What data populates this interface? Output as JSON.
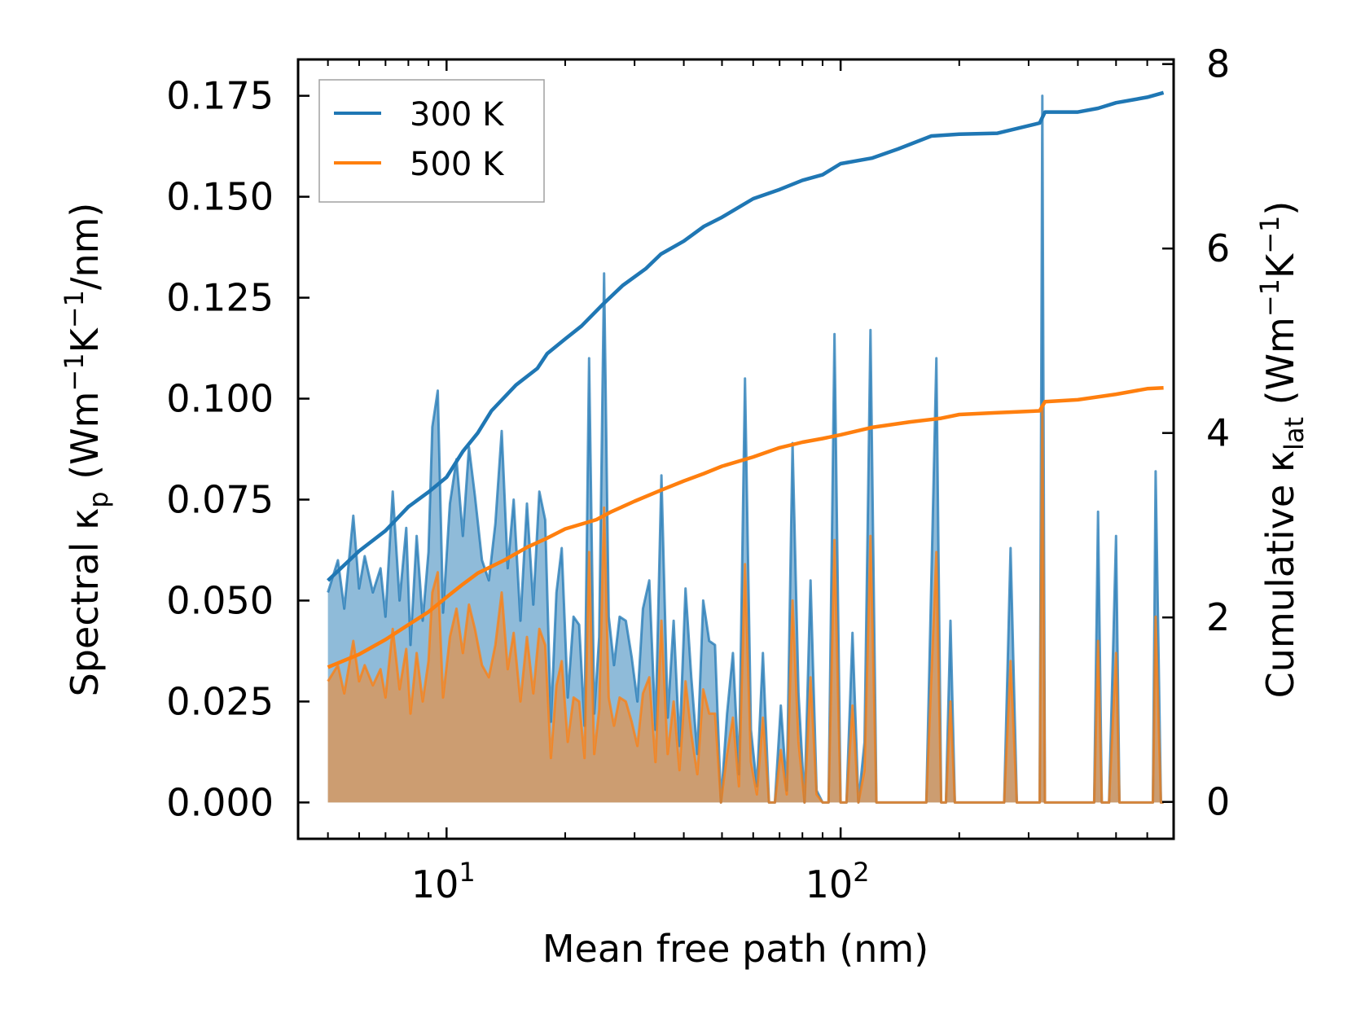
{
  "chart_data": {
    "type": "line",
    "x_scale": "log",
    "xlabel": "Mean free path (nm)",
    "ylabel_left": "Spectral κp (Wm−1K−1/nm)",
    "ylabel_right": "Cumulative κlat (Wm−1K−1)",
    "xlim": [
      4.2,
      700
    ],
    "ylim_left": [
      -0.009,
      0.184
    ],
    "ylim_right": [
      -0.4,
      8.05
    ],
    "x_ticks": [
      {
        "value": 10,
        "base": "10",
        "exp": "1"
      },
      {
        "value": 100,
        "base": "10",
        "exp": "2"
      }
    ],
    "y_ticks_left": [
      "0.000",
      "0.025",
      "0.050",
      "0.075",
      "0.100",
      "0.125",
      "0.150",
      "0.175"
    ],
    "y_ticks_left_values": [
      0,
      0.025,
      0.05,
      0.075,
      0.1,
      0.125,
      0.15,
      0.175
    ],
    "y_ticks_right": [
      "0",
      "2",
      "4",
      "6",
      "8"
    ],
    "y_ticks_right_values": [
      0,
      2,
      4,
      6,
      8
    ],
    "legend": {
      "location": "upper-left",
      "entries": [
        {
          "label": "300 K",
          "color": "#1f77b4"
        },
        {
          "label": "500 K",
          "color": "#ff7f0e"
        }
      ]
    },
    "series": [
      {
        "name": "300 K",
        "color": "#1f77b4",
        "fill_color": "#1f77b4",
        "spectral": {
          "x": [
            5,
            5.3,
            5.5,
            5.8,
            6.0,
            6.2,
            6.5,
            6.8,
            7.0,
            7.3,
            7.6,
            7.9,
            8.1,
            8.4,
            8.7,
            9.0,
            9.2,
            9.5,
            9.8,
            10.2,
            10.6,
            11.0,
            11.4,
            11.8,
            12.3,
            12.8,
            13.3,
            13.8,
            14.3,
            14.8,
            15.4,
            16.0,
            16.6,
            17.2,
            17.8,
            18.4,
            19.0,
            19.6,
            20.3,
            21.0,
            21.7,
            22.4,
            23.0,
            23.7,
            24.4,
            25.1,
            25.8,
            26.6,
            27.5,
            28.5,
            29.5,
            30.5,
            31.5,
            32.7,
            33.9,
            35.1,
            36.4,
            37.7,
            39.0,
            40.4,
            41.8,
            43.3,
            44.8,
            46.4,
            48.0,
            49.7,
            51.5,
            53.3,
            55.2,
            57.2,
            59.2,
            61.3,
            63.5,
            65.8,
            68.1,
            70.5,
            73.0,
            75.5,
            78.2,
            81.0,
            83.9,
            86.9,
            90.0,
            93.2,
            96.5,
            100.0,
            103.5,
            107.2,
            111.0,
            115.0,
            119.1,
            123.3,
            127.7,
            132.3,
            137.0,
            141.9,
            150.0,
            165.0,
            175.0,
            180.0,
            185.0,
            190.0,
            195.0,
            230.0,
            260.0,
            270.0,
            280.0,
            310.0,
            320.0,
            325.0,
            330.0,
            390.0,
            440.0,
            450.0,
            460.0,
            480.0,
            500.0,
            510.0,
            530.0,
            580.0,
            620.0,
            630.0,
            650.0,
            660.0
          ],
          "y": [
            0.052,
            0.06,
            0.048,
            0.071,
            0.053,
            0.061,
            0.052,
            0.058,
            0.046,
            0.077,
            0.05,
            0.068,
            0.039,
            0.066,
            0.045,
            0.062,
            0.093,
            0.102,
            0.047,
            0.074,
            0.085,
            0.066,
            0.088,
            0.076,
            0.06,
            0.055,
            0.069,
            0.092,
            0.058,
            0.075,
            0.045,
            0.074,
            0.049,
            0.077,
            0.07,
            0.02,
            0.052,
            0.063,
            0.026,
            0.046,
            0.044,
            0.019,
            0.11,
            0.022,
            0.041,
            0.131,
            0.046,
            0.034,
            0.046,
            0.045,
            0.036,
            0.025,
            0.048,
            0.055,
            0.018,
            0.081,
            0.021,
            0.045,
            0.014,
            0.053,
            0.031,
            0.012,
            0.05,
            0.04,
            0.039,
            0.0,
            0.022,
            0.037,
            0.007,
            0.105,
            0.018,
            0.004,
            0.037,
            0.0,
            0.0,
            0.024,
            0.003,
            0.089,
            0.027,
            0.0,
            0.055,
            0.003,
            0.0,
            0.0,
            0.116,
            0.0,
            0.0,
            0.042,
            0.0,
            0.015,
            0.117,
            0.0,
            0.0,
            0.0,
            0.0,
            0.0,
            0.0,
            0.0,
            0.11,
            0.0,
            0.0,
            0.045,
            0.0,
            0.0,
            0.0,
            0.063,
            0.0,
            0.0,
            0.0,
            0.175,
            0.0,
            0.0,
            0.0,
            0.072,
            0.0,
            0.0,
            0.066,
            0.0,
            0.0,
            0.0,
            0.0,
            0.082,
            0.0,
            0.0
          ]
        },
        "cumulative": {
          "x": [
            5,
            6,
            7,
            8,
            9,
            10,
            11,
            12,
            13,
            15,
            17,
            18,
            20,
            22,
            25,
            28,
            32,
            35,
            40,
            45,
            50,
            60,
            70,
            80,
            90,
            100,
            120,
            140,
            170,
            200,
            250,
            320,
            330,
            400,
            450,
            500,
            600,
            660
          ],
          "y": [
            2.4,
            2.72,
            2.94,
            3.2,
            3.36,
            3.52,
            3.8,
            4.0,
            4.24,
            4.52,
            4.7,
            4.86,
            5.02,
            5.16,
            5.4,
            5.6,
            5.78,
            5.94,
            6.08,
            6.24,
            6.34,
            6.54,
            6.64,
            6.74,
            6.8,
            6.92,
            6.98,
            7.08,
            7.22,
            7.24,
            7.25,
            7.36,
            7.48,
            7.48,
            7.52,
            7.58,
            7.64,
            7.69
          ]
        }
      },
      {
        "name": "500 K",
        "color": "#ff7f0e",
        "fill_color": "#f28a30",
        "spectral": {
          "x": [
            5,
            5.3,
            5.5,
            5.8,
            6.0,
            6.2,
            6.5,
            6.8,
            7.0,
            7.3,
            7.6,
            7.9,
            8.1,
            8.4,
            8.7,
            9.0,
            9.2,
            9.5,
            9.8,
            10.2,
            10.6,
            11.0,
            11.4,
            11.8,
            12.3,
            12.8,
            13.3,
            13.8,
            14.3,
            14.8,
            15.4,
            16.0,
            16.6,
            17.2,
            17.8,
            18.4,
            19.0,
            19.6,
            20.3,
            21.0,
            21.7,
            22.4,
            23.0,
            23.7,
            24.4,
            25.1,
            25.8,
            26.6,
            27.5,
            28.5,
            29.5,
            30.5,
            31.5,
            32.7,
            33.9,
            35.1,
            36.4,
            37.7,
            39.0,
            40.4,
            41.8,
            43.3,
            44.8,
            46.4,
            48.0,
            49.7,
            51.5,
            53.3,
            55.2,
            57.2,
            59.2,
            61.3,
            63.5,
            65.8,
            68.1,
            70.5,
            73.0,
            75.5,
            78.2,
            81.0,
            83.9,
            86.9,
            90.0,
            93.2,
            96.5,
            100.0,
            103.5,
            107.2,
            111.0,
            115.0,
            119.1,
            123.3,
            127.7,
            132.3,
            137.0,
            141.9,
            150.0,
            165.0,
            175.0,
            180.0,
            185.0,
            190.0,
            195.0,
            230.0,
            260.0,
            270.0,
            280.0,
            310.0,
            320.0,
            325.0,
            330.0,
            390.0,
            440.0,
            450.0,
            460.0,
            480.0,
            500.0,
            510.0,
            530.0,
            580.0,
            620.0,
            630.0,
            650.0,
            660.0
          ],
          "y": [
            0.03,
            0.034,
            0.027,
            0.04,
            0.03,
            0.034,
            0.029,
            0.033,
            0.026,
            0.043,
            0.028,
            0.038,
            0.022,
            0.037,
            0.025,
            0.035,
            0.052,
            0.057,
            0.026,
            0.041,
            0.048,
            0.037,
            0.049,
            0.043,
            0.034,
            0.031,
            0.039,
            0.052,
            0.033,
            0.042,
            0.025,
            0.041,
            0.027,
            0.043,
            0.039,
            0.011,
            0.029,
            0.035,
            0.015,
            0.026,
            0.025,
            0.011,
            0.062,
            0.012,
            0.023,
            0.073,
            0.026,
            0.019,
            0.026,
            0.025,
            0.02,
            0.014,
            0.027,
            0.031,
            0.01,
            0.045,
            0.012,
            0.025,
            0.008,
            0.03,
            0.017,
            0.007,
            0.028,
            0.022,
            0.022,
            0.0,
            0.012,
            0.021,
            0.004,
            0.059,
            0.01,
            0.002,
            0.021,
            0.0,
            0.0,
            0.013,
            0.002,
            0.05,
            0.015,
            0.0,
            0.031,
            0.002,
            0.0,
            0.0,
            0.065,
            0.0,
            0.0,
            0.024,
            0.0,
            0.008,
            0.066,
            0.0,
            0.0,
            0.0,
            0.0,
            0.0,
            0.0,
            0.0,
            0.062,
            0.0,
            0.0,
            0.025,
            0.0,
            0.0,
            0.0,
            0.035,
            0.0,
            0.0,
            0.0,
            0.098,
            0.0,
            0.0,
            0.0,
            0.04,
            0.0,
            0.0,
            0.037,
            0.0,
            0.0,
            0.0,
            0.0,
            0.046,
            0.0,
            0.0
          ]
        },
        "cumulative": {
          "x": [
            5,
            6,
            7,
            8,
            9,
            10,
            11,
            12,
            14,
            16,
            18,
            20,
            24,
            26,
            30,
            35,
            40,
            45,
            50,
            60,
            70,
            80,
            90,
            100,
            120,
            150,
            180,
            200,
            250,
            320,
            330,
            400,
            500,
            600,
            660
          ],
          "y": [
            1.46,
            1.6,
            1.76,
            1.92,
            2.06,
            2.22,
            2.36,
            2.48,
            2.62,
            2.76,
            2.86,
            2.96,
            3.06,
            3.14,
            3.26,
            3.38,
            3.48,
            3.56,
            3.64,
            3.74,
            3.84,
            3.9,
            3.94,
            3.98,
            4.06,
            4.12,
            4.16,
            4.2,
            4.22,
            4.24,
            4.34,
            4.36,
            4.42,
            4.48,
            4.49
          ]
        }
      }
    ]
  }
}
